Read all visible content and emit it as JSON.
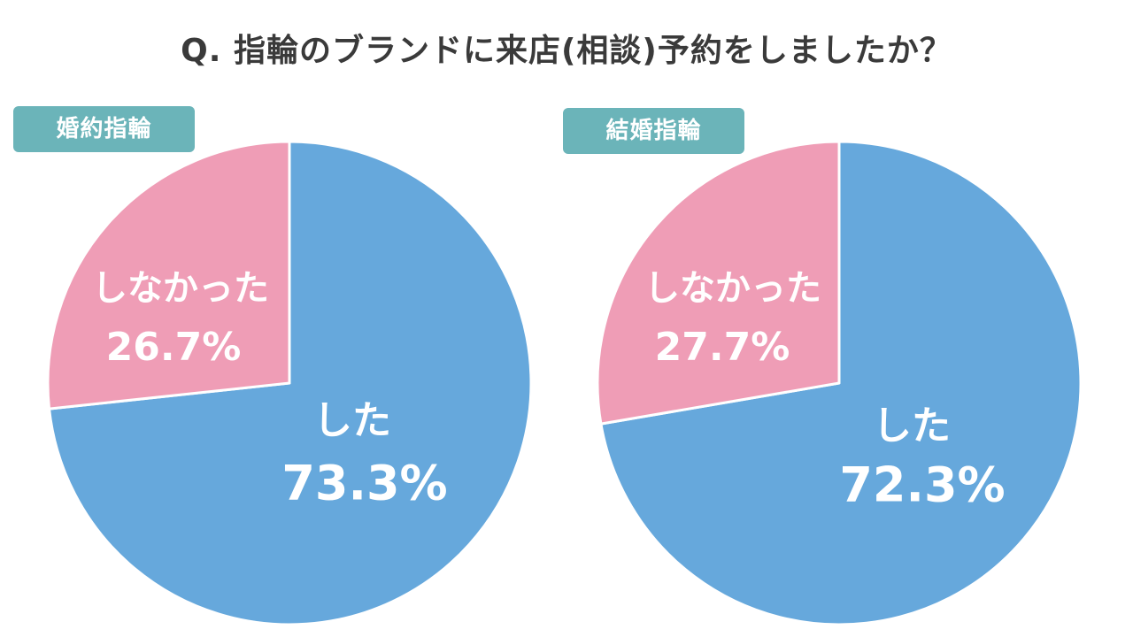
{
  "title": "Q. 指輪のブランドに来店(相談)予約をしましたか？",
  "colors": {
    "did": "#66a8dc",
    "did_not": "#ef9db6",
    "tag": "#6bb4b9",
    "title": "#3a3a3a",
    "label": "#ffffff"
  },
  "chart_data": [
    {
      "type": "pie",
      "tag": "婚約指輪",
      "slices": [
        {
          "label": "した",
          "value": 73.3,
          "display": "73.3%",
          "color": "#66a8dc"
        },
        {
          "label": "しなかった",
          "value": 26.7,
          "display": "26.7%",
          "color": "#ef9db6"
        }
      ]
    },
    {
      "type": "pie",
      "tag": "結婚指輪",
      "slices": [
        {
          "label": "した",
          "value": 72.3,
          "display": "72.3%",
          "color": "#66a8dc"
        },
        {
          "label": "しなかった",
          "value": 27.7,
          "display": "27.7%",
          "color": "#ef9db6"
        }
      ]
    }
  ]
}
